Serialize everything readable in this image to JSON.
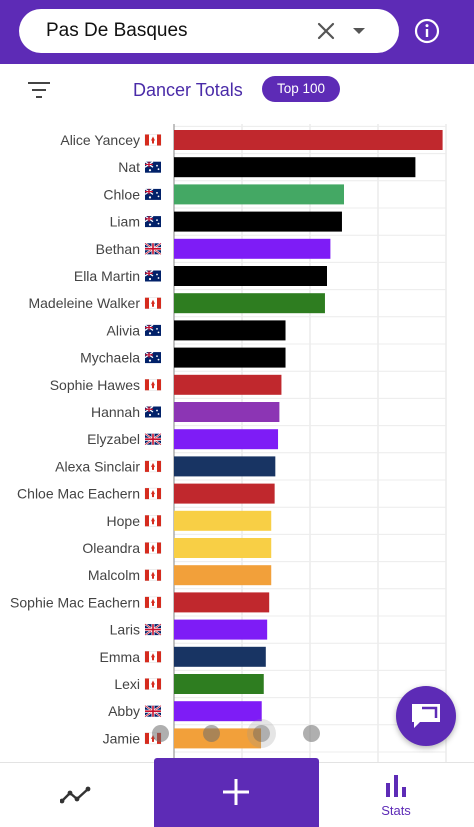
{
  "search": {
    "value": "Pas De Basques"
  },
  "icons": {
    "clear": "close-icon",
    "dropdown": "caret-down-icon",
    "info": "info-icon",
    "filter": "filter-list-icon",
    "chat": "chat-bubble-icon",
    "trend": "trending-line-icon",
    "add": "plus-icon",
    "stats": "bar-chart-icon"
  },
  "panel": {
    "title": "Dancer Totals",
    "badge": "Top 100"
  },
  "nav": {
    "stats_label": "Stats"
  },
  "colors": {
    "primary": "#5d2bb6",
    "red": "#c0282d",
    "black": "#000000",
    "light_green": "#44a864",
    "dark_green": "#2e7d20",
    "violet": "#7e1cf6",
    "purple": "#8c35b4",
    "navy": "#183463",
    "yellow": "#f8cf45",
    "orange": "#f2a03a"
  },
  "chart_data": {
    "type": "bar",
    "orientation": "horizontal",
    "grid": true,
    "categories": [
      "Alice Yancey",
      "Nat",
      "Chloe",
      "Liam",
      "Bethan",
      "Ella Martin",
      "Madeleine Walker",
      "Alivia",
      "Mychaela",
      "Sophie Hawes",
      "Hannah",
      "Elyzabel",
      "Alexa Sinclair",
      "Chloe Mac Eachern",
      "Hope",
      "Oleandra",
      "Malcolm",
      "Sophie Mac Eachern",
      "Laris",
      "Emma",
      "Lexi",
      "Abby",
      "Jamie"
    ],
    "flags": [
      "CA",
      "AU",
      "AU",
      "AU",
      "GB",
      "AU",
      "CA",
      "AU",
      "AU",
      "CA",
      "AU",
      "GB",
      "CA",
      "CA",
      "CA",
      "CA",
      "CA",
      "CA",
      "GB",
      "CA",
      "CA",
      "GB",
      "CA"
    ],
    "values": [
      39.5,
      35.5,
      25.0,
      24.7,
      23.0,
      22.5,
      22.2,
      16.4,
      16.4,
      15.8,
      15.5,
      15.3,
      14.9,
      14.8,
      14.3,
      14.3,
      14.3,
      14.0,
      13.7,
      13.5,
      13.2,
      12.9,
      12.8
    ],
    "bar_colors": [
      "#c0282d",
      "#000000",
      "#44a864",
      "#000000",
      "#7e1cf6",
      "#000000",
      "#2e7d20",
      "#000000",
      "#000000",
      "#c0282d",
      "#8c35b4",
      "#7e1cf6",
      "#183463",
      "#c0282d",
      "#f8cf45",
      "#f8cf45",
      "#f2a03a",
      "#c0282d",
      "#7e1cf6",
      "#183463",
      "#2e7d20",
      "#7e1cf6",
      "#f2a03a"
    ],
    "xlim": [
      0,
      40
    ],
    "grid_step": 10
  }
}
